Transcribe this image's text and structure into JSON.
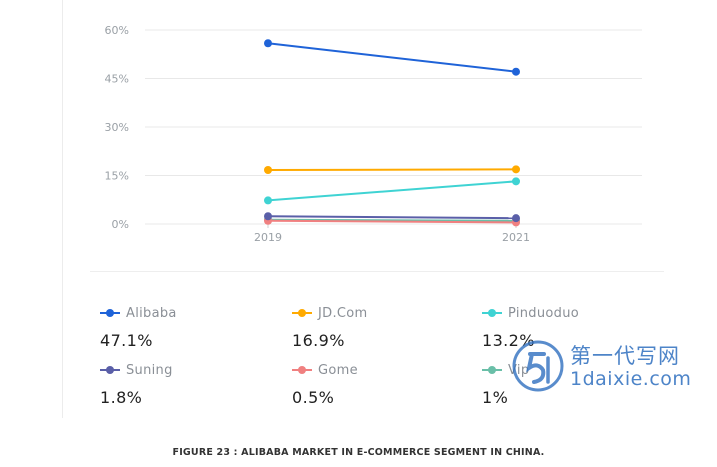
{
  "chart_data": {
    "type": "line",
    "x": [
      "2019",
      "2021"
    ],
    "ylim": [
      0,
      60
    ],
    "y_ticks": [
      "0%",
      "15%",
      "30%",
      "45%",
      "60%"
    ],
    "y_tick_values": [
      0,
      15,
      30,
      45,
      60
    ],
    "grid": true,
    "legend_position": "bottom",
    "series": [
      {
        "name": "Alibaba",
        "color": "#1f63d8",
        "values": [
          55.9,
          47.1
        ],
        "label": "47.1%"
      },
      {
        "name": "JD.Com",
        "color": "#ffaa00",
        "values": [
          16.7,
          16.9
        ],
        "label": "16.9%"
      },
      {
        "name": "Pinduoduo",
        "color": "#3fd3d3",
        "values": [
          7.3,
          13.2
        ],
        "label": "13.2%"
      },
      {
        "name": "Suning",
        "color": "#5a5fa8",
        "values": [
          2.4,
          1.8
        ],
        "label": "1.8%"
      },
      {
        "name": "Gome",
        "color": "#f08080",
        "values": [
          1.0,
          0.5
        ],
        "label": "0.5%"
      },
      {
        "name": "Vip",
        "color": "#6abfa8",
        "values": [
          1.3,
          1.0
        ],
        "label": "1%"
      }
    ]
  },
  "caption": "FIGURE 23 : ALIBABA MARKET IN E-COMMERCE SEGMENT IN CHINA.",
  "watermark": {
    "title": "第一代写网",
    "subtitle": "1daixie.com"
  }
}
